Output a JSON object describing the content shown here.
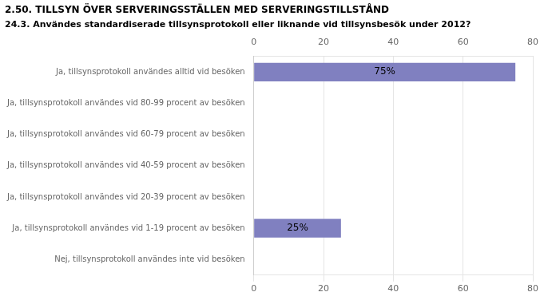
{
  "chart_data": {
    "type": "bar",
    "orientation": "horizontal",
    "title": "2.50. TILLSYN ÖVER SERVERINGSSTÄLLEN MED SERVERINGSTILLSTÅND",
    "subtitle": "24.3. Användes standardiserade tillsynsprotokoll eller liknande vid tillsynsbesök under 2012?",
    "categories": [
      "Ja, tillsynsprotokoll användes alltid vid besöken",
      "Ja, tillsynsprotokoll användes vid 80-99 procent av besöken",
      "Ja, tillsynsprotokoll användes vid 60-79 procent av besöken",
      "Ja, tillsynsprotokoll användes vid 40-59 procent av besöken",
      "Ja, tillsynsprotokoll användes vid 20-39 procent av besöken",
      "Ja, tillsynsprotokoll användes vid 1-19 procent av besöken",
      "Nej, tillsynsprotokoll användes inte vid besöken"
    ],
    "values": [
      75,
      0,
      0,
      0,
      0,
      25,
      0
    ],
    "value_labels": [
      "75%",
      null,
      null,
      null,
      null,
      "25%",
      null
    ],
    "data_labels": true,
    "color": "#8080c0",
    "xlim": [
      0,
      80
    ],
    "xticks": [
      0,
      20,
      40,
      60,
      80
    ],
    "grid": true
  }
}
